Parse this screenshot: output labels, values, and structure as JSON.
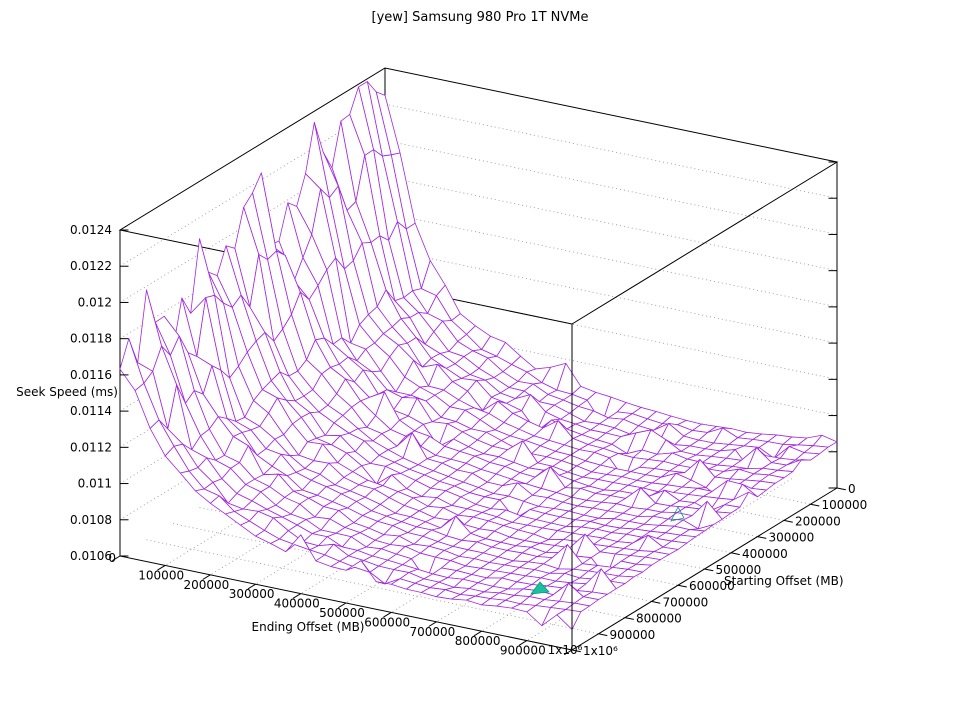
{
  "chart_data": {
    "type": "surface3d-wireframe",
    "title": "[yew] Samsung 980 Pro 1T NVMe",
    "xlabel": "Ending Offset (MB)",
    "ylabel": "Starting Offset (MB)",
    "zlabel": "Seek Speed (ms)",
    "xlim": [
      0,
      1000000
    ],
    "ylim": [
      0,
      1000000
    ],
    "zlim": [
      0.0106,
      0.0124
    ],
    "x_tick_labels": [
      "0",
      "100000",
      "200000",
      "300000",
      "400000",
      "500000",
      "600000",
      "700000",
      "800000",
      "900000",
      "1x10⁶"
    ],
    "y_tick_labels": [
      "0",
      "100000",
      "200000",
      "300000",
      "400000",
      "500000",
      "600000",
      "700000",
      "800000",
      "900000",
      "1x10⁶"
    ],
    "z_tick_labels": [
      "0.0106",
      "0.0108",
      "0.011",
      "0.0112",
      "0.0114",
      "0.0116",
      "0.0118",
      "0.012",
      "0.0122",
      "0.0124"
    ],
    "grid": true,
    "legend": "none",
    "mesh_cells": 30,
    "colors": {
      "surface": "#a328e0",
      "underside": "#1ac0a0",
      "underside_edge": "#009e73",
      "grid": "#9a9a9a",
      "box": "#000000",
      "text": "#000000",
      "background": "#ffffff"
    },
    "z_grid": {
      "rows_axis": "starting_offset_MB",
      "cols_axis": "ending_offset_MB",
      "ending_offsets": [
        0,
        100000,
        200000,
        300000,
        400000,
        500000,
        600000,
        700000,
        800000,
        900000,
        1000000
      ],
      "starting_offsets": [
        0,
        100000,
        200000,
        300000,
        400000,
        500000,
        600000,
        700000,
        800000,
        900000,
        1000000
      ],
      "seek_speed_ms": [
        [
          0.01225,
          0.01135,
          0.01108,
          0.01096,
          0.01088,
          0.01084,
          0.01081,
          0.0108,
          0.01081,
          0.01083,
          0.01086
        ],
        [
          0.01238,
          0.01128,
          0.01104,
          0.01092,
          0.01086,
          0.01081,
          0.01079,
          0.01078,
          0.01079,
          0.01081,
          0.01084
        ],
        [
          0.0121,
          0.01132,
          0.01106,
          0.01094,
          0.01087,
          0.01082,
          0.01079,
          0.01078,
          0.01079,
          0.01081,
          0.01084
        ],
        [
          0.01228,
          0.01124,
          0.01102,
          0.01091,
          0.01085,
          0.0108,
          0.01078,
          0.01077,
          0.01078,
          0.0108,
          0.01082
        ],
        [
          0.0119,
          0.01129,
          0.01104,
          0.01092,
          0.01085,
          0.01081,
          0.01078,
          0.01077,
          0.01078,
          0.0108,
          0.01082
        ],
        [
          0.01212,
          0.01121,
          0.011,
          0.01089,
          0.01083,
          0.01079,
          0.01077,
          0.01076,
          0.01077,
          0.01079,
          0.01081
        ],
        [
          0.01182,
          0.01126,
          0.01102,
          0.0109,
          0.01084,
          0.01079,
          0.01077,
          0.01076,
          0.01077,
          0.01078,
          0.0108
        ],
        [
          0.012,
          0.01118,
          0.01098,
          0.01088,
          0.01082,
          0.01078,
          0.01076,
          0.01075,
          0.01076,
          0.01078,
          0.0108
        ],
        [
          0.01172,
          0.01123,
          0.011,
          0.01089,
          0.01082,
          0.01078,
          0.01076,
          0.01075,
          0.01076,
          0.01077,
          0.01079
        ],
        [
          0.01188,
          0.01115,
          0.01096,
          0.01086,
          0.01081,
          0.01077,
          0.01075,
          0.01074,
          0.01075,
          0.01077,
          0.01079
        ],
        [
          0.01165,
          0.0112,
          0.01098,
          0.01087,
          0.01081,
          0.01077,
          0.01075,
          0.01074,
          0.01075,
          0.01076,
          0.01078
        ]
      ]
    },
    "noise": {
      "ridge_amplitude_ms": 0.00018,
      "mid_spike_amplitude_ms": 0.0001,
      "dip_amplitude_ms": 0.0001
    },
    "underside_patches": [
      {
        "points": [
          [
            531,
            594
          ],
          [
            549,
            592
          ],
          [
            540,
            582
          ]
        ],
        "filled": true
      },
      {
        "points": [
          [
            671,
            521
          ],
          [
            684,
            518
          ],
          [
            678,
            507
          ]
        ],
        "filled": false
      }
    ]
  }
}
